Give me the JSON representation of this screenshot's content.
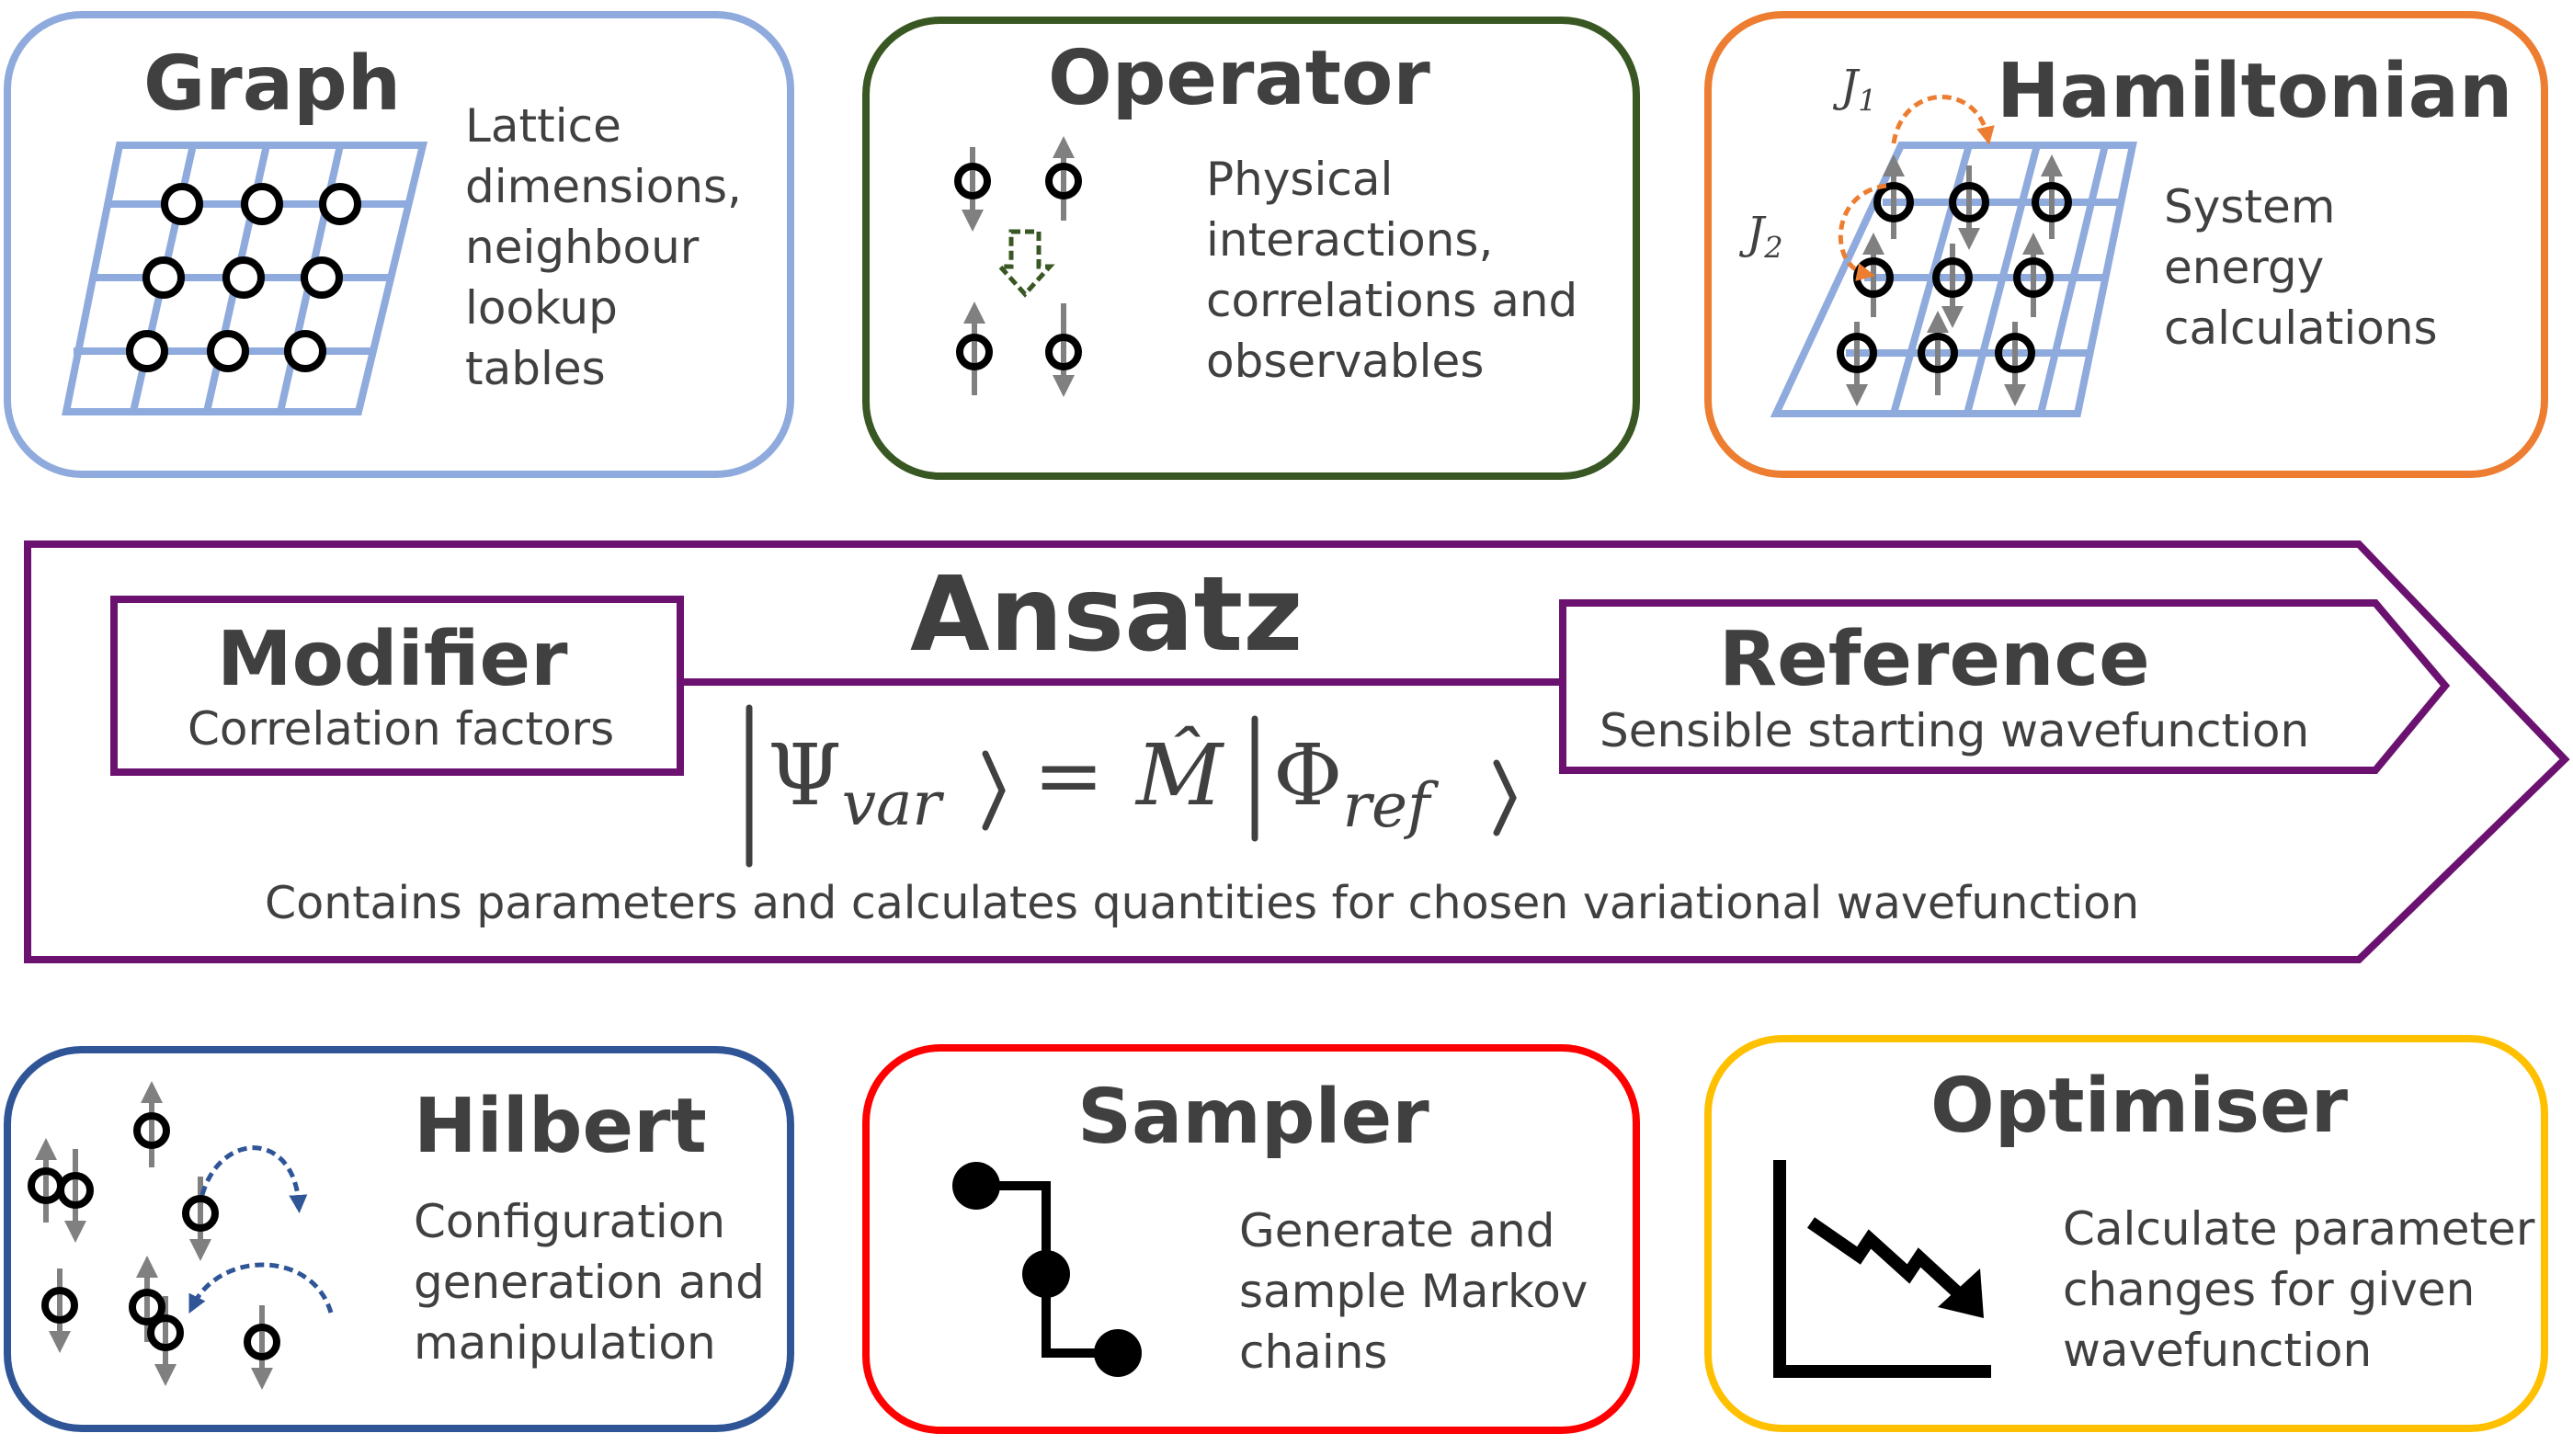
{
  "modules": {
    "graph": {
      "title": "Graph",
      "lines": [
        "Lattice",
        "dimensions,",
        "neighbour",
        "lookup",
        "tables"
      ],
      "color": "#8faadc"
    },
    "operator": {
      "title": "Operator",
      "lines": [
        "Physical",
        "interactions,",
        "correlations and",
        "observables"
      ],
      "color": "#385723"
    },
    "hamiltonian": {
      "title": "Hamiltonian",
      "lines": [
        "System",
        "energy",
        "calculations"
      ],
      "color": "#ed7d31",
      "j1": "J",
      "j1_sub": "1",
      "j2": "J",
      "j2_sub": "2"
    },
    "hilbert": {
      "title": "Hilbert",
      "lines": [
        "Configuration",
        "generation and",
        "manipulation"
      ],
      "color": "#2f5597"
    },
    "sampler": {
      "title": "Sampler",
      "lines": [
        "Generate and",
        "sample Markov",
        "chains"
      ],
      "color": "#ff0000"
    },
    "optimiser": {
      "title": "Optimiser",
      "lines": [
        "Calculate parameter",
        "changes for given",
        "wavefunction"
      ],
      "color": "#ffc000"
    }
  },
  "ansatz": {
    "title": "Ansatz",
    "color": "#6b1170",
    "modifier": {
      "title": "Modifier",
      "subtitle": "Correlation factors"
    },
    "reference": {
      "title": "Reference",
      "subtitle": "Sensible starting wavefunction"
    },
    "equation": {
      "psi": "Ψ",
      "psi_sub": "var",
      "equals": "=",
      "m_hat": "M̂",
      "phi": "Φ",
      "phi_sub": "ref"
    },
    "description": "Contains parameters and calculates quantities for chosen variational wavefunction"
  }
}
